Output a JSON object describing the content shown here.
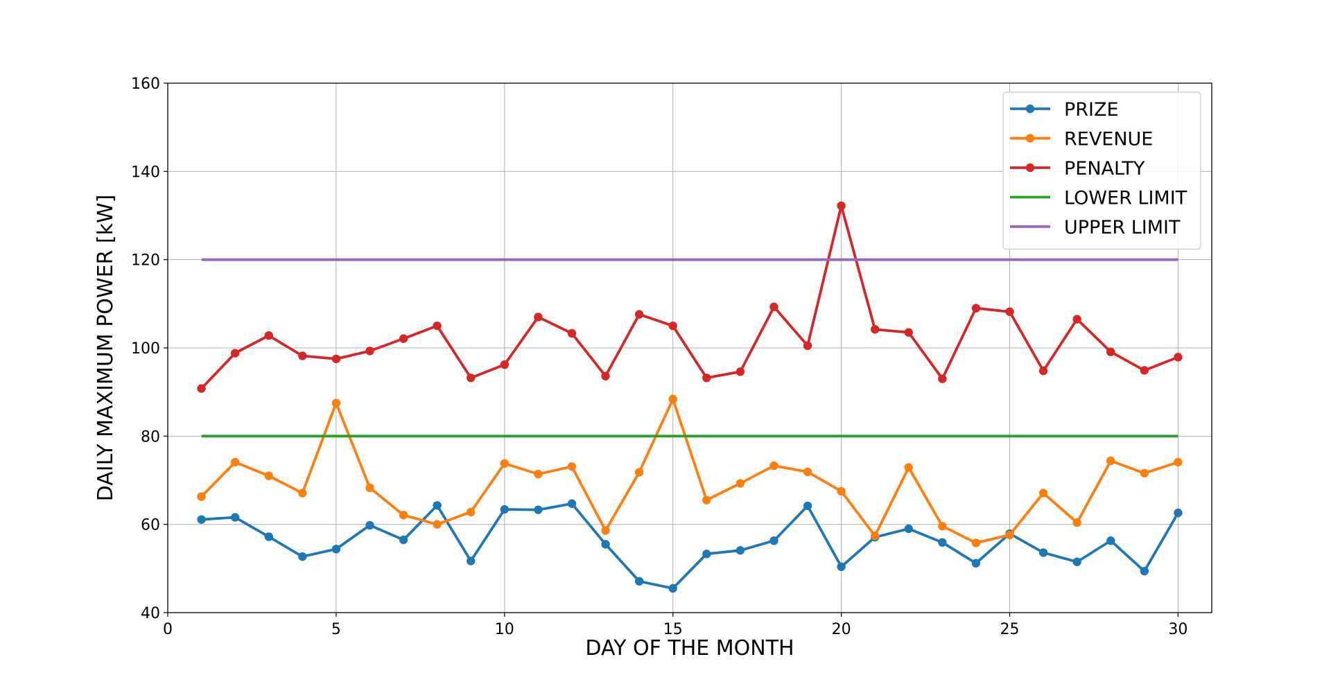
{
  "chart_data": {
    "type": "line",
    "xlabel": "DAY OF THE MONTH",
    "ylabel": "DAILY MAXIMUM POWER [kW]",
    "xlim": [
      0,
      31
    ],
    "ylim": [
      40,
      160
    ],
    "xticks": [
      0,
      5,
      10,
      15,
      20,
      25,
      30
    ],
    "yticks": [
      40,
      60,
      80,
      100,
      120,
      140,
      160
    ],
    "grid": true,
    "legend_position": "top-right",
    "x": [
      1,
      2,
      3,
      4,
      5,
      6,
      7,
      8,
      9,
      10,
      11,
      12,
      13,
      14,
      15,
      16,
      17,
      18,
      19,
      20,
      21,
      22,
      23,
      24,
      25,
      26,
      27,
      28,
      29,
      30
    ],
    "series": [
      {
        "name": "PRIZE",
        "color": "#1f77b4",
        "markers": true,
        "values": [
          61.1,
          61.6,
          57.2,
          52.7,
          54.4,
          59.8,
          56.5,
          64.3,
          51.7,
          63.4,
          63.3,
          64.7,
          55.5,
          47.1,
          45.5,
          53.3,
          54.1,
          56.3,
          64.2,
          50.4,
          57.1,
          59.0,
          55.9,
          51.2,
          57.9,
          53.6,
          51.5,
          56.3,
          49.4,
          62.6
        ]
      },
      {
        "name": "REVENUE",
        "color": "#ff7f0e",
        "markers": true,
        "values": [
          66.3,
          74.1,
          71.0,
          67.1,
          87.5,
          68.3,
          62.1,
          60.0,
          62.8,
          73.8,
          71.4,
          73.1,
          58.6,
          71.8,
          88.4,
          65.5,
          69.3,
          73.3,
          71.9,
          67.5,
          57.4,
          72.9,
          59.6,
          55.8,
          57.6,
          67.1,
          60.4,
          74.4,
          71.6,
          74.1
        ]
      },
      {
        "name": "PENALTY",
        "color": "#d62728",
        "markers": true,
        "values": [
          90.8,
          98.8,
          102.8,
          98.2,
          97.5,
          99.3,
          102.1,
          105.0,
          93.2,
          96.2,
          107.0,
          103.3,
          93.6,
          107.6,
          105.0,
          93.2,
          94.6,
          109.3,
          100.5,
          132.2,
          104.2,
          103.5,
          93.0,
          109.0,
          108.2,
          94.8,
          106.5,
          99.1,
          94.9,
          97.9
        ]
      },
      {
        "name": "LOWER LIMIT",
        "color": "#2ca02c",
        "markers": false,
        "values": [
          80,
          80,
          80,
          80,
          80,
          80,
          80,
          80,
          80,
          80,
          80,
          80,
          80,
          80,
          80,
          80,
          80,
          80,
          80,
          80,
          80,
          80,
          80,
          80,
          80,
          80,
          80,
          80,
          80,
          80
        ]
      },
      {
        "name": "UPPER LIMIT",
        "color": "#9467bd",
        "markers": false,
        "values": [
          120,
          120,
          120,
          120,
          120,
          120,
          120,
          120,
          120,
          120,
          120,
          120,
          120,
          120,
          120,
          120,
          120,
          120,
          120,
          120,
          120,
          120,
          120,
          120,
          120,
          120,
          120,
          120,
          120,
          120
        ]
      }
    ]
  }
}
